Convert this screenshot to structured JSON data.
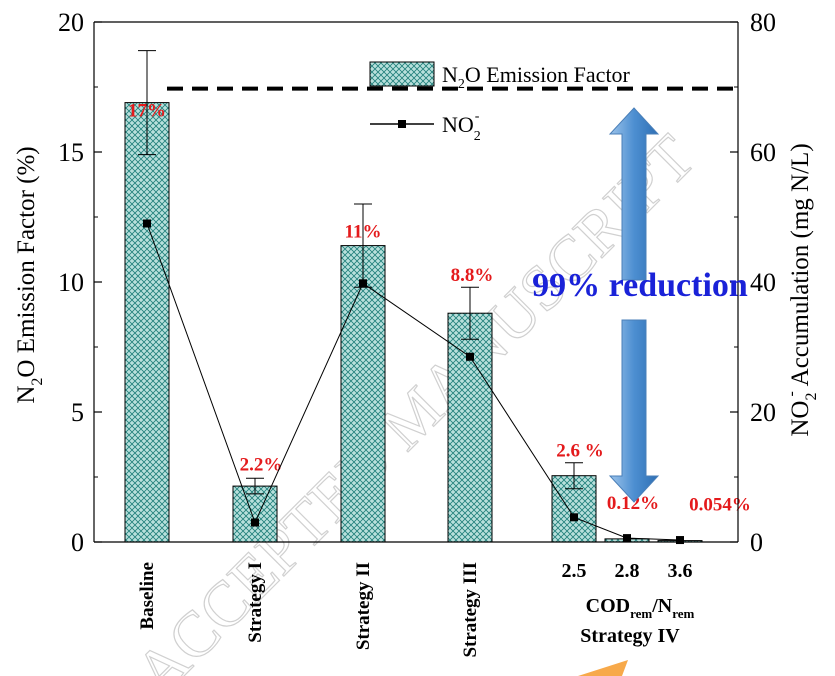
{
  "chart_data": {
    "type": "bar",
    "categories": [
      "Baseline",
      "Strategy I",
      "Strategy II",
      "Strategy III",
      "2.5",
      "2.8",
      "3.6"
    ],
    "group_label": "Strategy IV",
    "group_ratio_label": {
      "base1": "COD",
      "sub1": "rem",
      "sep": "/N",
      "sub2": "rem"
    },
    "series": [
      {
        "name": "N2O Emission Factor",
        "name_parts": {
          "pre": "N",
          "sub": "2",
          "post": "O Emission Factor"
        },
        "type": "bar",
        "axis": "left",
        "values": [
          16.9,
          2.15,
          11.4,
          8.8,
          2.55,
          0.12,
          0.054
        ],
        "errors": [
          2.0,
          0.3,
          1.6,
          1.0,
          0.5,
          0.0,
          0.0
        ],
        "data_labels": [
          "17%",
          "2.2%",
          "11%",
          "8.8%",
          "2.6 %",
          "0.12%",
          "0.054%"
        ]
      },
      {
        "name": "NO2-",
        "name_parts": {
          "pre": "NO",
          "sub": "2",
          "sup": "-"
        },
        "type": "line",
        "axis": "right",
        "values": [
          49,
          3,
          39.8,
          28.5,
          3.8,
          0.6,
          0.3
        ]
      }
    ],
    "ylabel_left": {
      "pre": "N",
      "sub": "2",
      "post": "O Emission Factor (%)"
    },
    "ylabel_right": {
      "pre": "NO",
      "sub": "2",
      "sup": "-",
      "post": " Accumulation (mg N/L)"
    },
    "ylim_left": [
      0,
      20
    ],
    "ylim_right": [
      0,
      80
    ],
    "yticks_left": [
      "0",
      "5",
      "10",
      "15",
      "20"
    ],
    "yticks_right": [
      "0",
      "20",
      "40",
      "60",
      "80"
    ],
    "reference_line_value": 16.9,
    "annotation": "99% reduction",
    "watermark": "ACCEPTED MANUSCRIPT",
    "colors": {
      "bar_fill": "#b8e0dc",
      "bar_hatch": "#1f7f7a",
      "label_red": "#e41a1c",
      "annotation_blue": "#1a22d8",
      "arrow_blue": "#5b9bd5",
      "orange": "#f7a94a"
    }
  }
}
